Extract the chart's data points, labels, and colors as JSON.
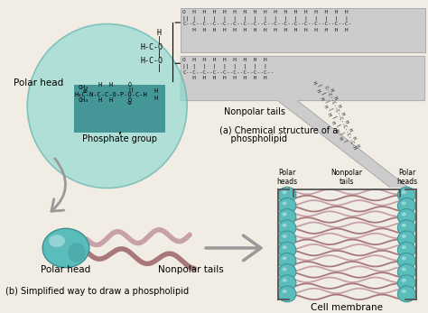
{
  "bg_color": "#f2ede4",
  "teal_circle_color": "#8dd8d0",
  "teal_circle_dark": "#5aafaa",
  "teal_circle_alpha": 0.65,
  "teal_head_color": "#5bbcbc",
  "teal_head_dark": "#3a9090",
  "phosphate_box_color": "#3a9090",
  "tail_color": "#c8a0a8",
  "tail_dark": "#a87878",
  "gray_band_color": "#cccccc",
  "gray_band_edge": "#aaaaaa",
  "arrow_color": "#999999",
  "label_polar_head_top": "Polar head",
  "label_phosphate": "Phosphate group",
  "label_nonpolar_tails_top": "Nonpolar tails",
  "label_chem_a": "(a) Chemical structure of a",
  "label_chem_b": "    phospholipid",
  "label_polar_head_bot": "Polar head",
  "label_nonpolar_tails_bot": "Nonpolar tails",
  "label_simplified": "(b) Simplified way to draw a phospholipid",
  "label_polar_heads_left": "Polar\nheads",
  "label_nonpolar_tails_mid": "Nonpolar\ntails",
  "label_polar_heads_right": "Polar\nheads",
  "label_cell_membrane": "Cell membrane"
}
